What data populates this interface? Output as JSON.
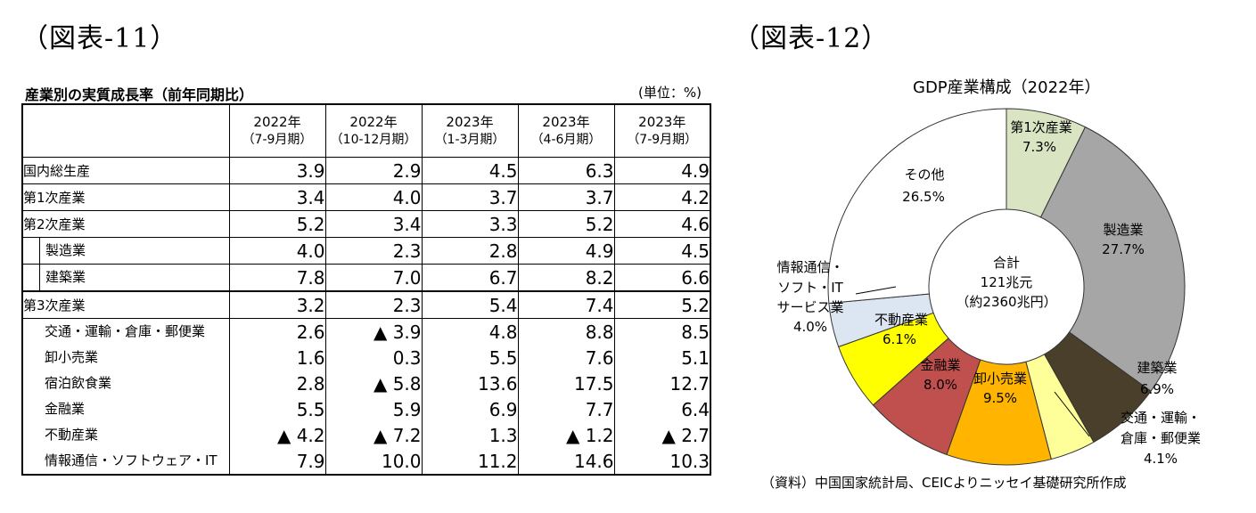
{
  "figure_labels": {
    "fig11": "（図表-11）",
    "fig12": "（図表-12）"
  },
  "table": {
    "title": "産業別の実質成長率（前年同期比）",
    "unit": "(単位：%)",
    "columns": [
      {
        "year": "2022年",
        "period": "（7-9月期）"
      },
      {
        "year": "2022年",
        "period": "（10-12月期）"
      },
      {
        "year": "2023年",
        "period": "（1-3月期）"
      },
      {
        "year": "2023年",
        "period": "（4-6月期）"
      },
      {
        "year": "2023年",
        "period": "（7-9月期）"
      }
    ],
    "rows": [
      {
        "label": "国内総生産",
        "level": 0,
        "values": [
          "3.9",
          "2.9",
          "4.5",
          "6.3",
          "4.9"
        ]
      },
      {
        "label": "第1次産業",
        "level": 0,
        "values": [
          "3.4",
          "4.0",
          "3.7",
          "3.7",
          "4.2"
        ]
      },
      {
        "label": "第2次産業",
        "level": 0,
        "values": [
          "5.2",
          "3.4",
          "3.3",
          "5.2",
          "4.6"
        ]
      },
      {
        "label": "製造業",
        "level": 1,
        "values": [
          "4.0",
          "2.3",
          "2.8",
          "4.9",
          "4.5"
        ]
      },
      {
        "label": "建築業",
        "level": 1,
        "values": [
          "7.8",
          "7.0",
          "6.7",
          "8.2",
          "6.6"
        ]
      },
      {
        "label": "第3次産業",
        "level": 0,
        "values": [
          "3.2",
          "2.3",
          "5.4",
          "7.4",
          "5.2"
        ]
      },
      {
        "label": "交通・運輸・倉庫・郵便業",
        "level": 2,
        "values": [
          "2.6",
          "▲ 3.9",
          "4.8",
          "8.8",
          "8.5"
        ]
      },
      {
        "label": "卸小売業",
        "level": 2,
        "values": [
          "1.6",
          "0.3",
          "5.5",
          "7.6",
          "5.1"
        ]
      },
      {
        "label": "宿泊飲食業",
        "level": 2,
        "values": [
          "2.8",
          "▲ 5.8",
          "13.6",
          "17.5",
          "12.7"
        ]
      },
      {
        "label": "金融業",
        "level": 2,
        "values": [
          "5.5",
          "5.9",
          "6.9",
          "7.7",
          "6.4"
        ]
      },
      {
        "label": "不動産業",
        "level": 2,
        "values": [
          "▲ 4.2",
          "▲ 7.2",
          "1.3",
          "▲ 1.2",
          "▲ 2.7"
        ]
      },
      {
        "label": "情報通信・ソフトウェア・IT",
        "level": 2,
        "values": [
          "7.9",
          "10.0",
          "11.2",
          "14.6",
          "10.3"
        ]
      }
    ]
  },
  "chart_data": {
    "type": "pie",
    "title": "GDP産業構成（2022年）",
    "center_label": [
      "合計",
      "121兆元",
      "（約2360兆円）"
    ],
    "slices": [
      {
        "label": "第1次産業",
        "value": 7.3,
        "text": "7.3%",
        "color": "#d9e4c2"
      },
      {
        "label": "製造業",
        "value": 27.7,
        "text": "27.7%",
        "color": "#a6a6a6"
      },
      {
        "label": "建築業",
        "value": 6.9,
        "text": "6.9%",
        "color": "#4a3f2a"
      },
      {
        "label": "交通・運輸・倉庫・郵便業",
        "value": 4.1,
        "text": "4.1%",
        "color": "#ffff99"
      },
      {
        "label": "卸小売業",
        "value": 9.5,
        "text": "9.5%",
        "color": "#ffb400"
      },
      {
        "label": "金融業",
        "value": 8.0,
        "text": "8.0%",
        "color": "#c0504d"
      },
      {
        "label": "不動産業",
        "value": 6.1,
        "text": "6.1%",
        "color": "#ffff00"
      },
      {
        "label": "情報通信・ソフト・ITサービス業",
        "value": 4.0,
        "text": "4.0%",
        "color": "#dce6f2"
      },
      {
        "label": "その他",
        "value": 26.5,
        "text": "26.5%",
        "color": "#ffffff"
      }
    ],
    "outside_labels": {
      "construction": "建築業",
      "transport": [
        "交通・運輸・",
        "倉庫・郵便業"
      ],
      "it": [
        "情報通信・",
        "ソフト・IT",
        "サービス業"
      ]
    }
  },
  "source_note": "（資料）中国国家統計局、CEICよりニッセイ基礎研究所作成"
}
